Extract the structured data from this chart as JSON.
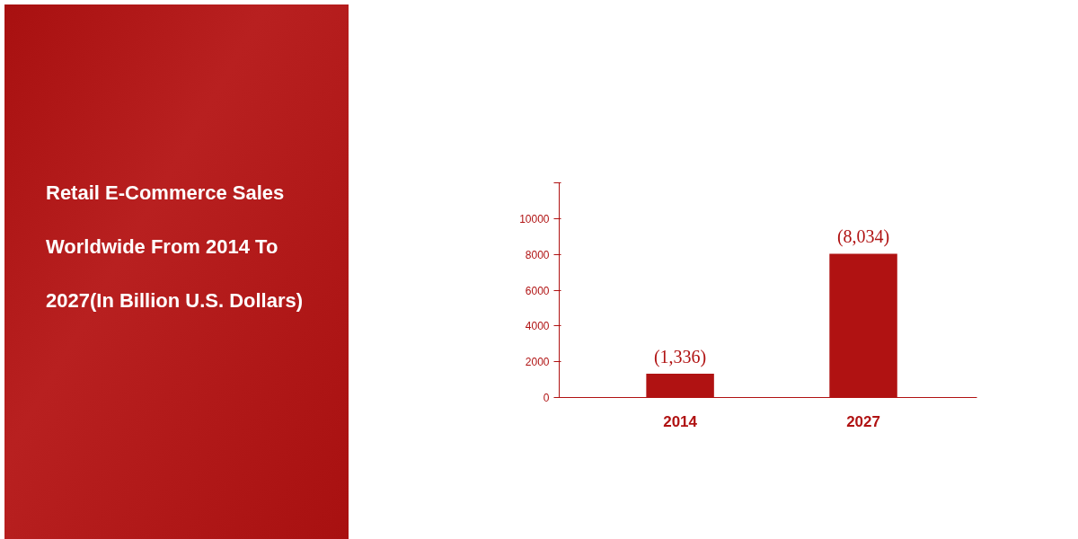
{
  "chart_data": {
    "type": "bar",
    "title": "Retail E-Commerce Sales Worldwide From 2014 To 2027(In Billion U.S. Dollars)",
    "categories": [
      "2014",
      "2027"
    ],
    "values": [
      1336,
      8034
    ],
    "value_labels": [
      "(1,336)",
      "(8,034)"
    ],
    "color": "#b01212",
    "ylim": [
      0,
      12000
    ],
    "yticks": [
      0,
      2000,
      4000,
      6000,
      8000,
      10000,
      {
        "value": 12000,
        "label": null
      }
    ],
    "grid": false
  }
}
